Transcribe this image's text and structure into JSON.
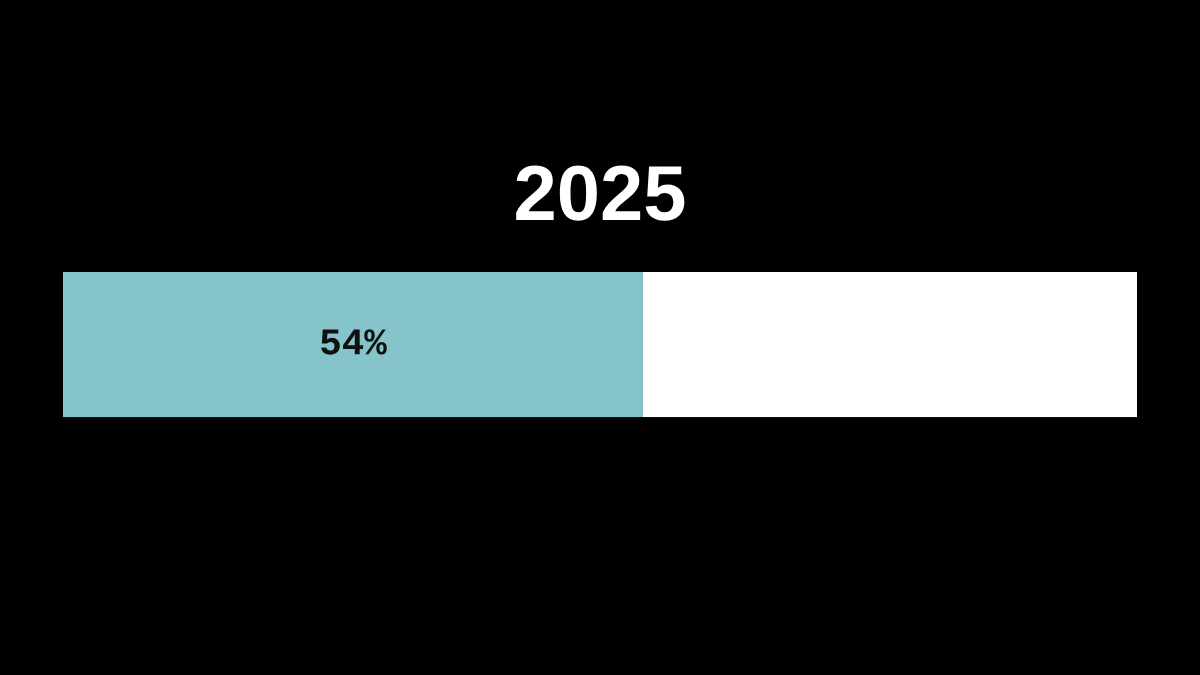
{
  "chart_data": {
    "type": "bar",
    "title": "2025",
    "orientation": "horizontal",
    "stacked": true,
    "categories": [
      null
    ],
    "xlim": [
      0,
      100
    ],
    "tick_labels": false,
    "series": [
      {
        "color": "#85c4cb",
        "values": [
          54
        ],
        "value_labels": [
          "54%"
        ]
      },
      {
        "color": "#ffffff",
        "values": [
          46
        ]
      }
    ]
  }
}
